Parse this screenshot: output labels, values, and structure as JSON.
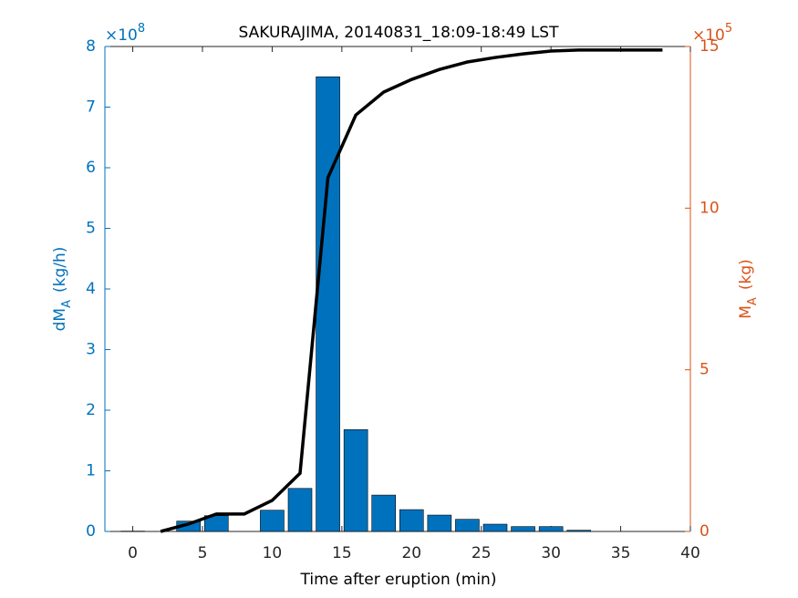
{
  "chart_data": {
    "type": "bar",
    "title": "SAKURAJIMA, 20140831_18:09-18:49 LST",
    "xlabel": "Time after eruption (min)",
    "ylabel": [
      "dM",
      "A",
      "(kg/h)"
    ],
    "y2label": [
      "M",
      "A",
      "(kg)"
    ],
    "y_multiplier": [
      "×10",
      "8"
    ],
    "y2_multiplier": [
      "×10",
      "5"
    ],
    "xlim": [
      -2,
      40
    ],
    "xticks": [
      0,
      5,
      10,
      15,
      20,
      25,
      30,
      35,
      40
    ],
    "ylim": [
      0,
      8
    ],
    "yticks": [
      0,
      1,
      2,
      3,
      4,
      5,
      6,
      7,
      8
    ],
    "y2lim": [
      0,
      15
    ],
    "y2ticks": [
      0,
      5,
      10,
      15
    ],
    "y_color": "#0072BD",
    "y2_color": "#D95319",
    "series": [
      {
        "type": "bar",
        "color": "#0072BD",
        "x": [
          0,
          2,
          4,
          6,
          8,
          10,
          12,
          14,
          16,
          18,
          20,
          22,
          24,
          26,
          28,
          30,
          32,
          34,
          36,
          38
        ],
        "values": [
          0.005,
          0,
          0.17,
          0.26,
          0,
          0.35,
          0.71,
          7.5,
          1.68,
          0.6,
          0.36,
          0.27,
          0.2,
          0.12,
          0.08,
          0.08,
          0.02,
          0,
          0,
          0
        ]
      },
      {
        "type": "line",
        "color": "#000000",
        "axis": "y2",
        "x": [
          2,
          4,
          6,
          8,
          10,
          12,
          14,
          16,
          18,
          20,
          22,
          24,
          26,
          28,
          30,
          32,
          34,
          36,
          38
        ],
        "values": [
          0,
          0.23,
          0.54,
          0.54,
          0.96,
          1.8,
          10.94,
          12.88,
          13.59,
          13.98,
          14.29,
          14.52,
          14.66,
          14.77,
          14.86,
          14.89,
          14.89,
          14.89,
          14.89
        ]
      }
    ]
  }
}
